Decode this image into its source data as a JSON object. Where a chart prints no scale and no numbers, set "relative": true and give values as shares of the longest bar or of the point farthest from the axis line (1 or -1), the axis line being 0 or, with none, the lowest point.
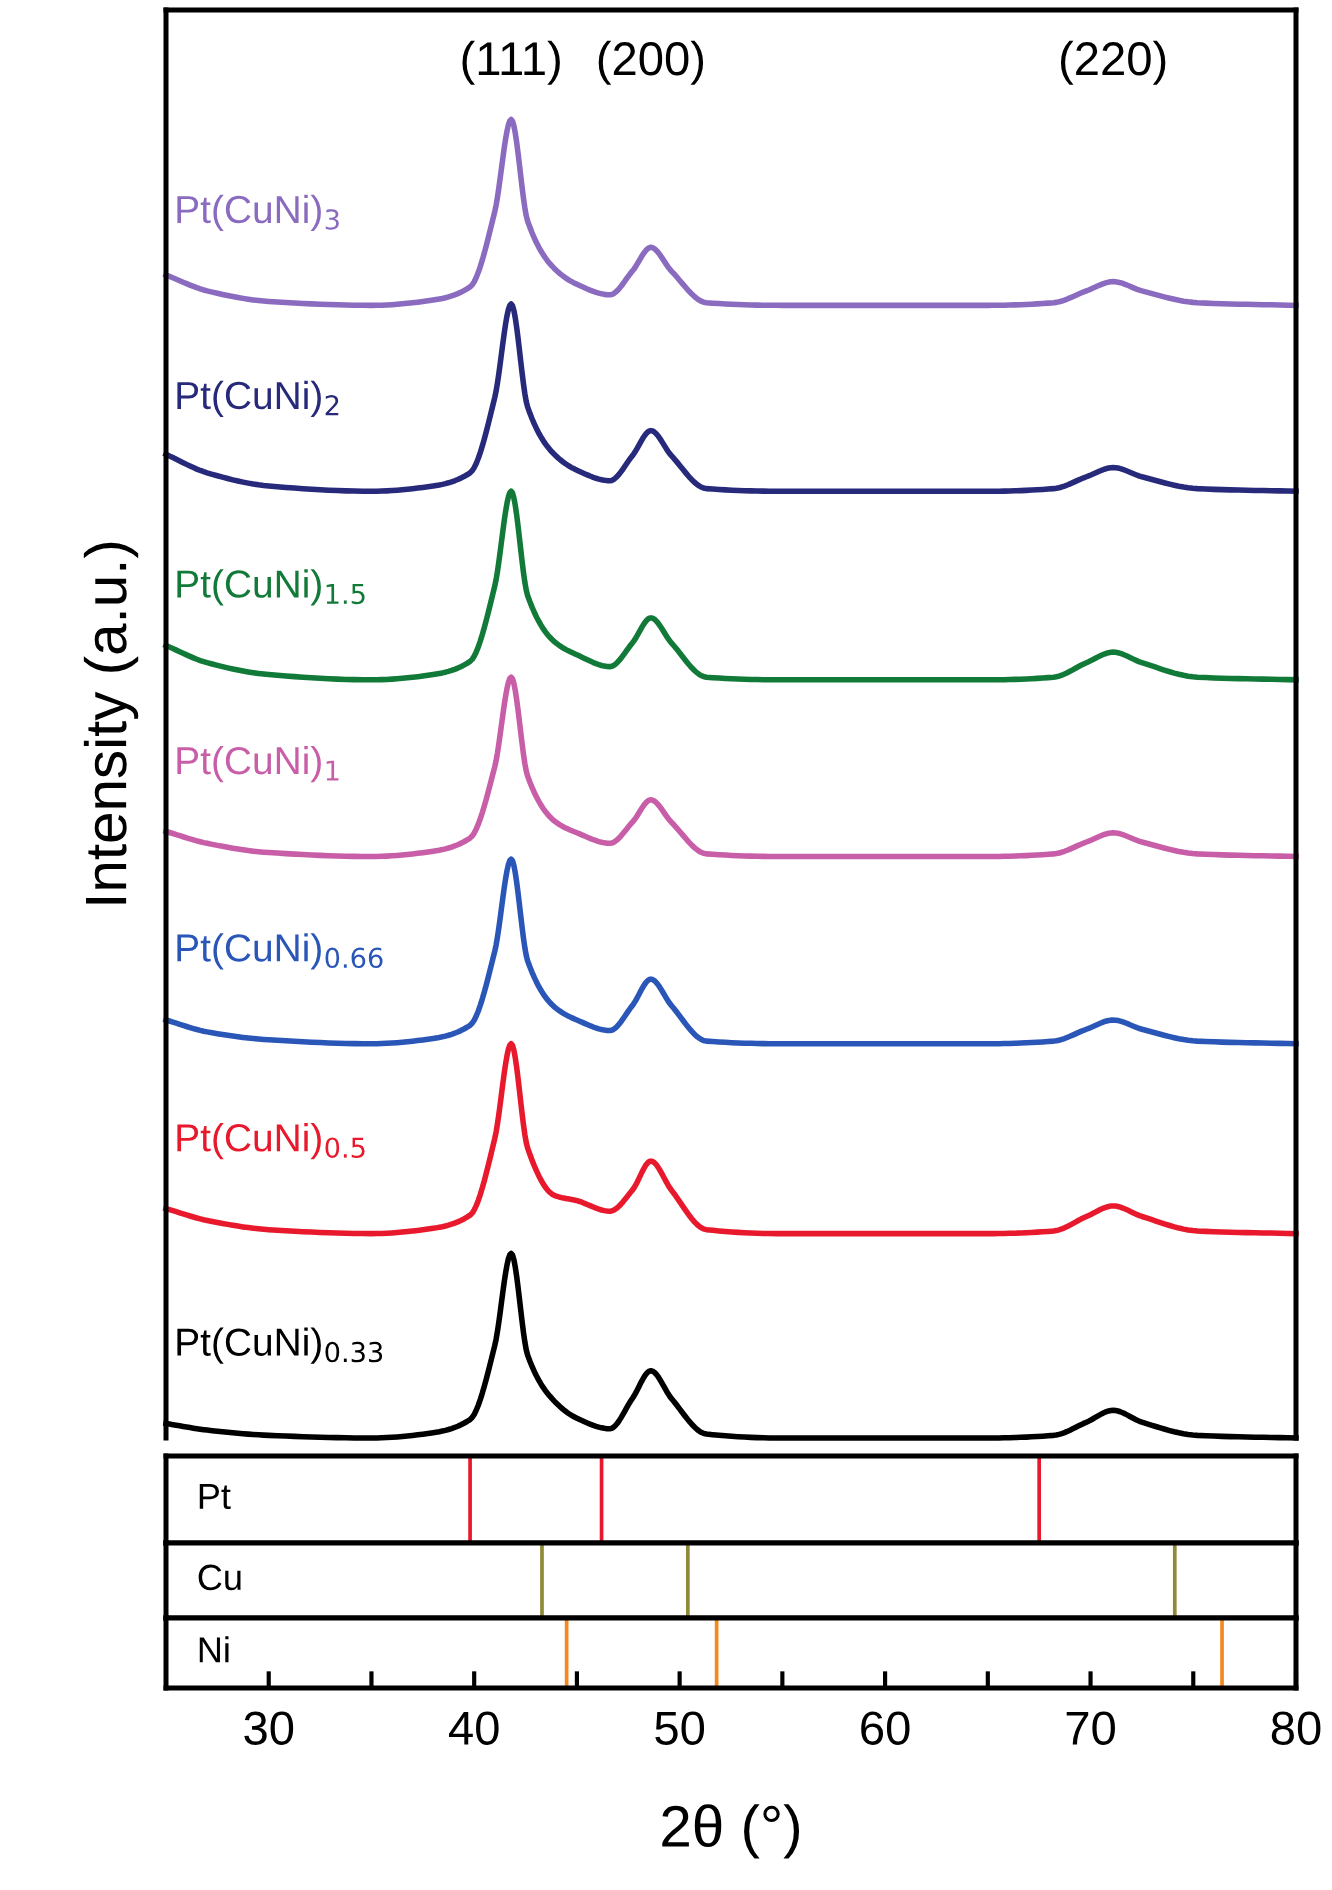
{
  "chart_data": [
    {
      "type": "line",
      "relative": true,
      "ylabel": "Intensity (a.u.)",
      "xlim": [
        25,
        80
      ],
      "tick_labels": false,
      "grid": false,
      "legend": false,
      "marker": "none",
      "line_style": "solid",
      "x": [
        25,
        27,
        30,
        35,
        38,
        39.8,
        41.0,
        41.8,
        42.6,
        43.9,
        45,
        46.6,
        47.7,
        48.6,
        49.6,
        51.3,
        55,
        60,
        65,
        68.2,
        69.8,
        71.1,
        72.5,
        75.2,
        80
      ],
      "annotations": [
        "(111)",
        "(200)",
        "(220)"
      ],
      "series": [
        {
          "name": "Pt(CuNi)$_{3}$",
          "color": "#8a6bbf",
          "values": [
            0.882,
            0.87,
            0.862,
            0.859,
            0.863,
            0.873,
            0.93,
            1.0,
            0.923,
            0.887,
            0.875,
            0.867,
            0.885,
            0.903,
            0.885,
            0.861,
            0.859,
            0.859,
            0.859,
            0.861,
            0.87,
            0.877,
            0.87,
            0.861,
            0.859
          ]
        },
        {
          "name": "Pt(CuNi)$_{2}$",
          "color": "#27297a",
          "values": [
            0.746,
            0.732,
            0.722,
            0.718,
            0.722,
            0.732,
            0.789,
            0.86,
            0.782,
            0.746,
            0.734,
            0.726,
            0.745,
            0.764,
            0.745,
            0.72,
            0.718,
            0.718,
            0.718,
            0.72,
            0.729,
            0.736,
            0.729,
            0.72,
            0.718
          ]
        },
        {
          "name": "Pt(CuNi)$_{1.5}$",
          "color": "#127a38",
          "values": [
            0.601,
            0.588,
            0.579,
            0.575,
            0.579,
            0.589,
            0.646,
            0.718,
            0.639,
            0.604,
            0.594,
            0.585,
            0.603,
            0.622,
            0.603,
            0.577,
            0.575,
            0.575,
            0.575,
            0.577,
            0.588,
            0.596,
            0.588,
            0.577,
            0.575
          ]
        },
        {
          "name": "Pt(CuNi)$_{1}$",
          "color": "#c85ea8",
          "values": [
            0.46,
            0.451,
            0.444,
            0.441,
            0.445,
            0.455,
            0.509,
            0.577,
            0.502,
            0.468,
            0.459,
            0.451,
            0.467,
            0.484,
            0.467,
            0.443,
            0.441,
            0.441,
            0.441,
            0.443,
            0.452,
            0.459,
            0.452,
            0.443,
            0.441
          ]
        },
        {
          "name": "Pt(CuNi)$_{0.66}$",
          "color": "#2a56b8",
          "values": [
            0.317,
            0.308,
            0.302,
            0.299,
            0.303,
            0.313,
            0.369,
            0.439,
            0.362,
            0.327,
            0.317,
            0.309,
            0.328,
            0.348,
            0.328,
            0.301,
            0.299,
            0.299,
            0.299,
            0.301,
            0.31,
            0.317,
            0.31,
            0.301,
            0.299
          ]
        },
        {
          "name": "Pt(CuNi)$_{0.5}$",
          "color": "#e8192c",
          "values": [
            0.174,
            0.165,
            0.158,
            0.155,
            0.159,
            0.169,
            0.227,
            0.299,
            0.22,
            0.184,
            0.18,
            0.172,
            0.188,
            0.21,
            0.188,
            0.158,
            0.155,
            0.155,
            0.155,
            0.157,
            0.168,
            0.176,
            0.168,
            0.157,
            0.155
          ]
        },
        {
          "name": "Pt(CuNi)$_{0.33}$",
          "color": "#000000",
          "values": [
            0.011,
            0.006,
            0.002,
            0,
            0.004,
            0.014,
            0.07,
            0.14,
            0.063,
            0.028,
            0.015,
            0.007,
            0.03,
            0.051,
            0.03,
            0.003,
            0,
            0,
            0,
            0.002,
            0.012,
            0.021,
            0.012,
            0.002,
            0
          ]
        }
      ]
    },
    {
      "type": "bar",
      "relative": true,
      "xlim": [
        25,
        80
      ],
      "tick_labels": false,
      "grid": false,
      "legend": false,
      "x": [
        39.8,
        46.2,
        67.5
      ],
      "series": [
        {
          "name": "Pt",
          "color": "#e8192c",
          "values": [
            1,
            1,
            1
          ]
        }
      ]
    },
    {
      "type": "bar",
      "relative": true,
      "xlim": [
        25,
        80
      ],
      "tick_labels": false,
      "grid": false,
      "legend": false,
      "x": [
        43.3,
        50.4,
        74.1
      ],
      "series": [
        {
          "name": "Cu",
          "color": "#8e8a35",
          "values": [
            1,
            1,
            1
          ]
        }
      ]
    },
    {
      "type": "bar",
      "relative": true,
      "xlabel": "2θ (°)",
      "xlim": [
        25,
        80
      ],
      "xticks": [
        30,
        {
          "value": 35,
          "label": null
        },
        40,
        {
          "value": 45,
          "label": null
        },
        50,
        {
          "value": 55,
          "label": null
        },
        60,
        {
          "value": 65,
          "label": null
        },
        70,
        {
          "value": 75,
          "label": null
        },
        80
      ],
      "tick_labels": "x",
      "grid": false,
      "legend": false,
      "x": [
        44.5,
        51.8,
        76.4
      ],
      "series": [
        {
          "name": "Ni",
          "color": "#f5891f",
          "values": [
            1,
            1,
            1
          ]
        }
      ]
    }
  ]
}
